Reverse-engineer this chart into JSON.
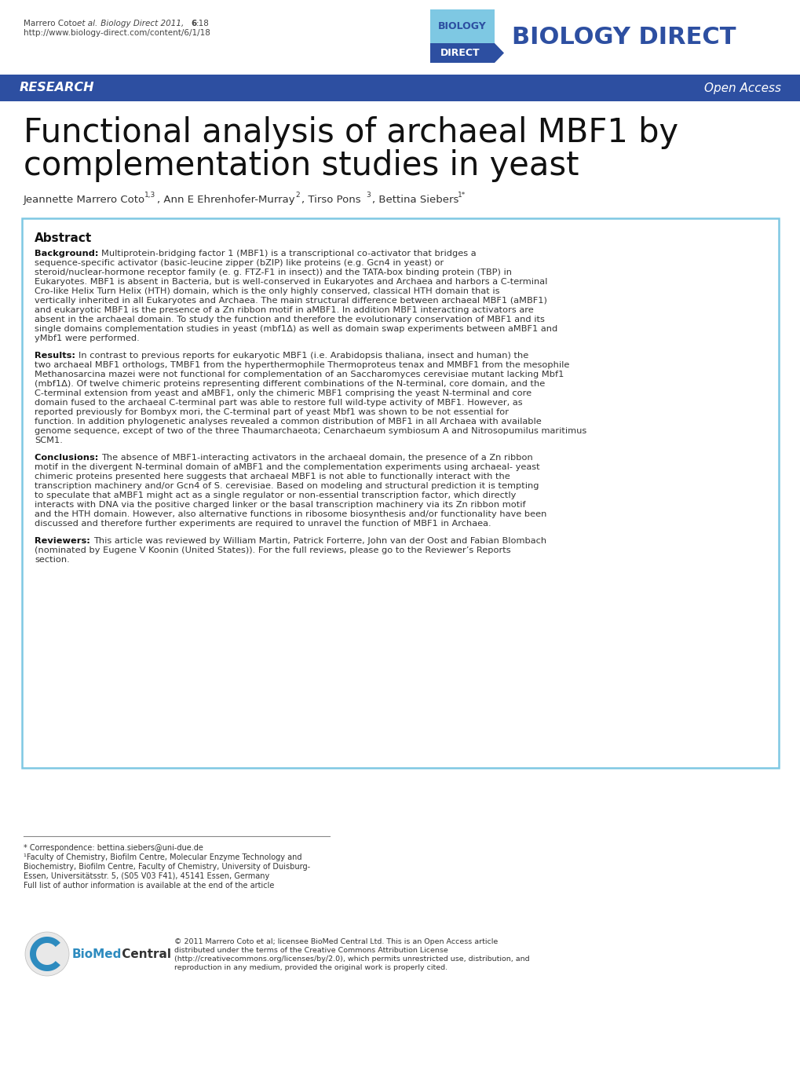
{
  "header_citation_plain": "Marrero Coto ",
  "header_citation_italic": "et al.",
  "header_citation_rest": " Biology Direct 2011, ",
  "header_citation_bold": "6",
  "header_citation_end": ":18",
  "header_url": "http://www.biology-direct.com/content/6/1/18",
  "journal_name": "BIOLOGY DIRECT",
  "research_label": "RESEARCH",
  "open_access_label": "Open Access",
  "title_line1": "Functional analysis of archaeal MBF1 by",
  "title_line2": "complementation studies in yeast",
  "abstract_title": "Abstract",
  "background_label": "Background:",
  "background_text": "Multiprotein-bridging factor 1 (MBF1) is a transcriptional co-activator that bridges a sequence-specific activator (basic-leucine zipper (bZIP) like proteins (e.g. Gcn4 in yeast) or steroid/nuclear-hormone receptor family (e. g. FTZ-F1 in insect)) and the TATA-box binding protein (TBP) in Eukaryotes. MBF1 is absent in Bacteria, but is well-conserved in Eukaryotes and Archaea and harbors a C-terminal Cro-like Helix Turn Helix (HTH) domain, which is the only highly conserved, classical HTH domain that is vertically inherited in all Eukaryotes and Archaea. The main structural difference between archaeal MBF1 (aMBF1) and eukaryotic MBF1 is the presence of a Zn ribbon motif in aMBF1. In addition MBF1 interacting activators are absent in the archaeal domain. To study the function and therefore the evolutionary conservation of MBF1 and its single domains complementation studies in yeast (mbf1Δ) as well as domain swap experiments between aMBF1 and yMbf1 were performed.",
  "results_label": "Results:",
  "results_text": "In contrast to previous reports for eukaryotic MBF1 (i.e. Arabidopsis thaliana, insect and human) the two archaeal MBF1 orthologs, TMBF1 from the hyperthermophile Thermoproteus tenax and MMBF1 from the mesophile Methanosarcina mazei were not functional for complementation of an Saccharomyces cerevisiae mutant lacking Mbf1 (mbf1Δ). Of twelve chimeric proteins representing different combinations of the N-terminal, core domain, and the C-terminal extension from yeast and aMBF1, only the chimeric MBF1 comprising the yeast N-terminal and core domain fused to the archaeal C-terminal part was able to restore full wild-type activity of MBF1. However, as reported previously for Bombyx mori, the C-terminal part of yeast Mbf1 was shown to be not essential for function. In addition phylogenetic analyses revealed a common distribution of MBF1 in all Archaea with available genome sequence, except of two of the three Thaumarchaeota; Cenarchaeum symbiosum A and Nitrosopumilus maritimus SCM1.",
  "conclusions_label": "Conclusions:",
  "conclusions_text": "The absence of MBF1-interacting activators in the archaeal domain, the presence of a Zn ribbon motif in the divergent N-terminal domain of aMBF1 and the complementation experiments using archaeal- yeast chimeric proteins presented here suggests that archaeal MBF1 is not able to functionally interact with the transcription machinery and/or Gcn4 of S. cerevisiae. Based on modeling and structural prediction it is tempting to speculate that aMBF1 might act as a single regulator or non-essential transcription factor, which directly interacts with DNA via the positive charged linker or the basal transcription machinery via its Zn ribbon motif and the HTH domain. However, also alternative functions in ribosome biosynthesis and/or functionality have been discussed and therefore further experiments are required to unravel the function of MBF1 in Archaea.",
  "reviewers_label": "Reviewers:",
  "reviewers_text": "This article was reviewed by William Martin, Patrick Forterre, John van der Oost and Fabian Blombach (nominated by Eugene V Koonin (United States)). For the full reviews, please go to the Reviewer’s Reports section.",
  "footer_correspondence": "* Correspondence: bettina.siebers@uni-due.de",
  "footer_affil1": "¹Faculty of Chemistry, Biofilm Centre, Molecular Enzyme Technology and",
  "footer_affil2": "Biochemistry, Biofilm Centre, Faculty of Chemistry, University of Duisburg-",
  "footer_affil3": "Essen, Universitätsstr. 5, (S05 V03 F41), 45141 Essen, Germany",
  "footer_affil4": "Full list of author information is available at the end of the article",
  "copyright_text": "© 2011 Marrero Coto et al; licensee BioMed Central Ltd. This is an Open Access article distributed under the terms of the Creative Commons Attribution License (http://creativecommons.org/licenses/by/2.0), which permits unrestricted use, distribution, and reproduction in any medium, provided the original work is properly cited.",
  "bio_med_central_text": "BioMed Central",
  "colors": {
    "header_text": "#444444",
    "title_text": "#111111",
    "research_bg": "#2d4fa1",
    "research_text": "#ffffff",
    "open_access_text": "#ffffff",
    "journal_name_color": "#2d4fa1",
    "logo_top_bg": "#7ec8e3",
    "logo_bottom_bg": "#2d4fa1",
    "logo_text_top": "#2d4fa1",
    "logo_text_bottom": "#ffffff",
    "abstract_box_border": "#7ec8e3",
    "abstract_title_color": "#111111",
    "label_bold_color": "#111111",
    "body_text_color": "#333333",
    "footer_line_color": "#888888",
    "separator_line_color": "#2d4fa1",
    "biomed_logo_blue": "#2d8bbf",
    "biomed_logo_circle": "#cccccc"
  }
}
